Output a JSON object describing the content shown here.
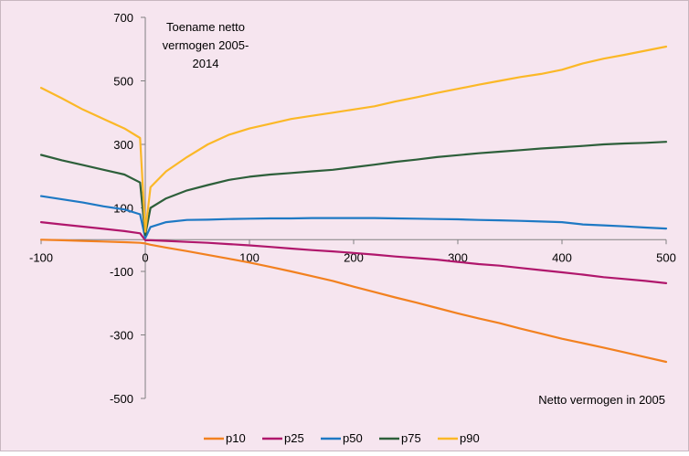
{
  "chart_data": {
    "type": "line",
    "title": "Toename netto vermogen 2005-2014",
    "title_lines": [
      "Toename netto",
      "vermogen 2005-",
      "2014"
    ],
    "xlabel": "Netto vermogen in 2005",
    "ylabel": "",
    "xlim": [
      -100,
      500
    ],
    "ylim": [
      -500,
      700
    ],
    "x_ticks": [
      -100,
      0,
      100,
      200,
      300,
      400,
      500
    ],
    "y_ticks": [
      700,
      500,
      300,
      100,
      -100,
      -300,
      -500
    ],
    "grid": false,
    "legend_position": "bottom",
    "background_color": "#f6e5ef",
    "x": [
      -100,
      -80,
      -60,
      -40,
      -20,
      -5,
      0,
      5,
      20,
      40,
      60,
      80,
      100,
      120,
      140,
      160,
      180,
      200,
      220,
      240,
      260,
      280,
      300,
      320,
      340,
      360,
      380,
      400,
      420,
      440,
      460,
      480,
      500
    ],
    "series": [
      {
        "name": "p10",
        "color": "#f28120",
        "values": [
          0,
          -2,
          -4,
          -6,
          -8,
          -10,
          -12,
          -16,
          -25,
          -36,
          -48,
          -60,
          -72,
          -86,
          -100,
          -115,
          -130,
          -148,
          -165,
          -182,
          -198,
          -215,
          -232,
          -248,
          -263,
          -280,
          -296,
          -312,
          -326,
          -340,
          -355,
          -370,
          -385
        ]
      },
      {
        "name": "p25",
        "color": "#b0176c",
        "values": [
          55,
          48,
          41,
          34,
          27,
          20,
          -2,
          -2,
          -4,
          -7,
          -10,
          -14,
          -18,
          -23,
          -28,
          -33,
          -37,
          -42,
          -47,
          -53,
          -58,
          -63,
          -70,
          -77,
          -82,
          -89,
          -96,
          -103,
          -110,
          -118,
          -124,
          -130,
          -137
        ]
      },
      {
        "name": "p50",
        "color": "#1e79c4",
        "values": [
          137,
          127,
          117,
          105,
          95,
          80,
          5,
          40,
          55,
          62,
          63,
          65,
          66,
          67,
          67,
          68,
          68,
          68,
          68,
          67,
          66,
          65,
          64,
          62,
          61,
          59,
          57,
          55,
          48,
          45,
          42,
          38,
          35
        ]
      },
      {
        "name": "p75",
        "color": "#2d5f3a",
        "values": [
          267,
          250,
          235,
          220,
          205,
          180,
          15,
          100,
          130,
          155,
          172,
          188,
          198,
          205,
          210,
          215,
          220,
          228,
          236,
          245,
          252,
          260,
          266,
          272,
          277,
          282,
          287,
          291,
          295,
          300,
          303,
          305,
          308
        ]
      },
      {
        "name": "p90",
        "color": "#fbb827",
        "values": [
          478,
          445,
          410,
          380,
          350,
          320,
          25,
          165,
          215,
          260,
          300,
          330,
          350,
          365,
          380,
          390,
          400,
          410,
          420,
          435,
          448,
          462,
          475,
          488,
          500,
          512,
          522,
          535,
          555,
          570,
          582,
          595,
          608
        ]
      }
    ]
  }
}
